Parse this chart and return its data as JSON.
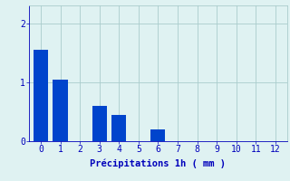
{
  "categories": [
    0,
    1,
    2,
    3,
    4,
    5,
    6,
    7,
    8,
    9,
    10,
    11,
    12
  ],
  "values": [
    1.55,
    1.05,
    0.0,
    0.6,
    0.45,
    0.0,
    0.2,
    0.0,
    0.0,
    0.0,
    0.0,
    0.0,
    0.0
  ],
  "bar_color": "#0044cc",
  "background_color": "#dff2f2",
  "xlabel": "Précipitations 1h ( mm )",
  "xlabel_color": "#0000bb",
  "yticks": [
    0,
    1,
    2
  ],
  "ylim": [
    0,
    2.3
  ],
  "xlim": [
    -0.6,
    12.6
  ],
  "grid_color": "#aacccc",
  "tick_color": "#0000bb",
  "axis_label_fontsize": 7.5,
  "tick_fontsize": 7
}
